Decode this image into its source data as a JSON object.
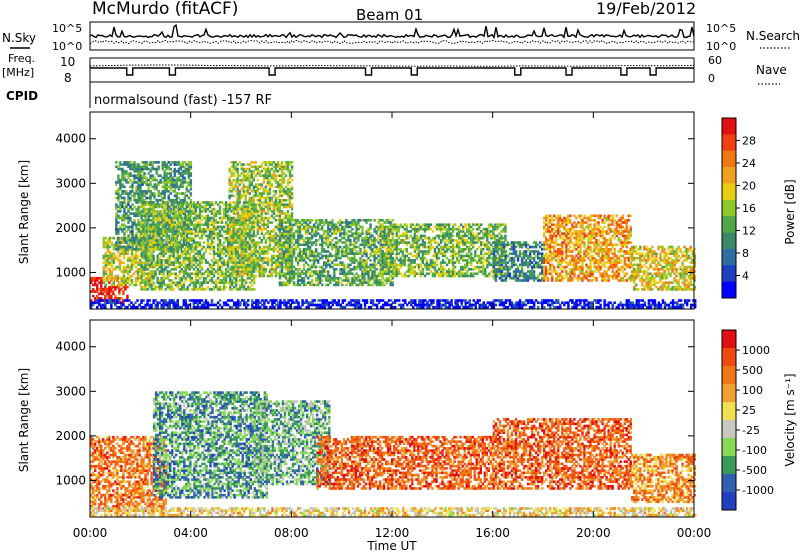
{
  "header": {
    "station": "McMurdo (fitACF)",
    "beam": "Beam 01",
    "date": "19/Feb/2012"
  },
  "noise_panel": {
    "left_label": "N.Sky",
    "right_label": "N.Search",
    "left_ticks": [
      "10^5",
      "10^0"
    ],
    "right_ticks": [
      "10^5",
      "10^0"
    ]
  },
  "freq_panel": {
    "left_label_top": "Freq.",
    "left_label_unit": "[MHz]",
    "left_ticks": [
      "10",
      "8"
    ],
    "right_label": "Nave",
    "right_ticks": [
      "60",
      "0"
    ]
  },
  "cpid_panel": {
    "label": "CPID",
    "text": "normalsound (fast) -157 RF"
  },
  "chart_data": [
    {
      "type": "heatmap",
      "title": "",
      "ylabel": "Slant Range [km]",
      "xlabel": "",
      "ylim": [
        180,
        4600
      ],
      "yticks": [
        "1000",
        "2000",
        "3000",
        "4000"
      ],
      "colorbar": {
        "label": "Power [dB]",
        "ticks": [
          "28",
          "24",
          "20",
          "16",
          "12",
          "8",
          "4"
        ],
        "colors": [
          "#0000ff",
          "#1f3fbf",
          "#2f6f9f",
          "#3a8a6a",
          "#4ea84a",
          "#8fc82a",
          "#e8d010",
          "#f0a020",
          "#f07810",
          "#f04010",
          "#e01010"
        ]
      },
      "bands": [
        {
          "t0": 0.0,
          "t1": 1.5,
          "r0": 300,
          "r1": 900,
          "level": 0.95
        },
        {
          "t0": 0.5,
          "t1": 2.5,
          "r0": 700,
          "r1": 1800,
          "level": 0.55
        },
        {
          "t0": 1.0,
          "t1": 4.0,
          "r0": 1500,
          "r1": 3500,
          "level": 0.35
        },
        {
          "t0": 2.0,
          "t1": 6.5,
          "r0": 600,
          "r1": 2600,
          "level": 0.45
        },
        {
          "t0": 5.5,
          "t1": 8.0,
          "r0": 900,
          "r1": 3500,
          "level": 0.5
        },
        {
          "t0": 7.5,
          "t1": 12.0,
          "r0": 700,
          "r1": 2200,
          "level": 0.4
        },
        {
          "t0": 11.5,
          "t1": 16.5,
          "r0": 900,
          "r1": 2100,
          "level": 0.45
        },
        {
          "t0": 16.0,
          "t1": 18.0,
          "r0": 800,
          "r1": 1700,
          "level": 0.3
        },
        {
          "t0": 18.0,
          "t1": 21.5,
          "r0": 800,
          "r1": 2300,
          "level": 0.7
        },
        {
          "t0": 21.5,
          "t1": 24.0,
          "r0": 600,
          "r1": 1600,
          "level": 0.6
        },
        {
          "t0": 0.0,
          "t1": 24.0,
          "r0": 200,
          "r1": 400,
          "level": 0.05
        }
      ]
    },
    {
      "type": "heatmap",
      "title": "",
      "ylabel": "Slant Range [km]",
      "xlabel": "Time UT",
      "ylim": [
        180,
        4600
      ],
      "yticks": [
        "1000",
        "2000",
        "3000",
        "4000"
      ],
      "colorbar": {
        "label": "Velocity [m s⁻¹]",
        "ticks": [
          "1000",
          "500",
          "100",
          "25",
          "-25",
          "-100",
          "-500",
          "-1000"
        ],
        "colors": [
          "#e01010",
          "#f04a10",
          "#f07818",
          "#f0a030",
          "#f0e050",
          "#c8c8c0",
          "#88d858",
          "#3a9a5a",
          "#3060b0",
          "#2040c0"
        ]
      },
      "bands": [
        {
          "t0": 0.0,
          "t1": 3.0,
          "r0": 300,
          "r1": 2000,
          "level": 0.25
        },
        {
          "t0": 2.5,
          "t1": 7.0,
          "r0": 600,
          "r1": 3000,
          "level": 0.75
        },
        {
          "t0": 6.5,
          "t1": 9.5,
          "r0": 900,
          "r1": 2800,
          "level": 0.7
        },
        {
          "t0": 9.0,
          "t1": 16.0,
          "r0": 800,
          "r1": 2000,
          "level": 0.2
        },
        {
          "t0": 16.0,
          "t1": 21.5,
          "r0": 800,
          "r1": 2400,
          "level": 0.2
        },
        {
          "t0": 21.5,
          "t1": 24.0,
          "r0": 500,
          "r1": 1600,
          "level": 0.3
        },
        {
          "t0": 0.0,
          "t1": 24.0,
          "r0": 200,
          "r1": 400,
          "level": 0.45
        }
      ]
    }
  ],
  "time_axis": {
    "label": "Time UT",
    "ticks": [
      "00:00",
      "04:00",
      "08:00",
      "12:00",
      "16:00",
      "20:00",
      "00:00"
    ],
    "range_hours": [
      0,
      24
    ]
  }
}
